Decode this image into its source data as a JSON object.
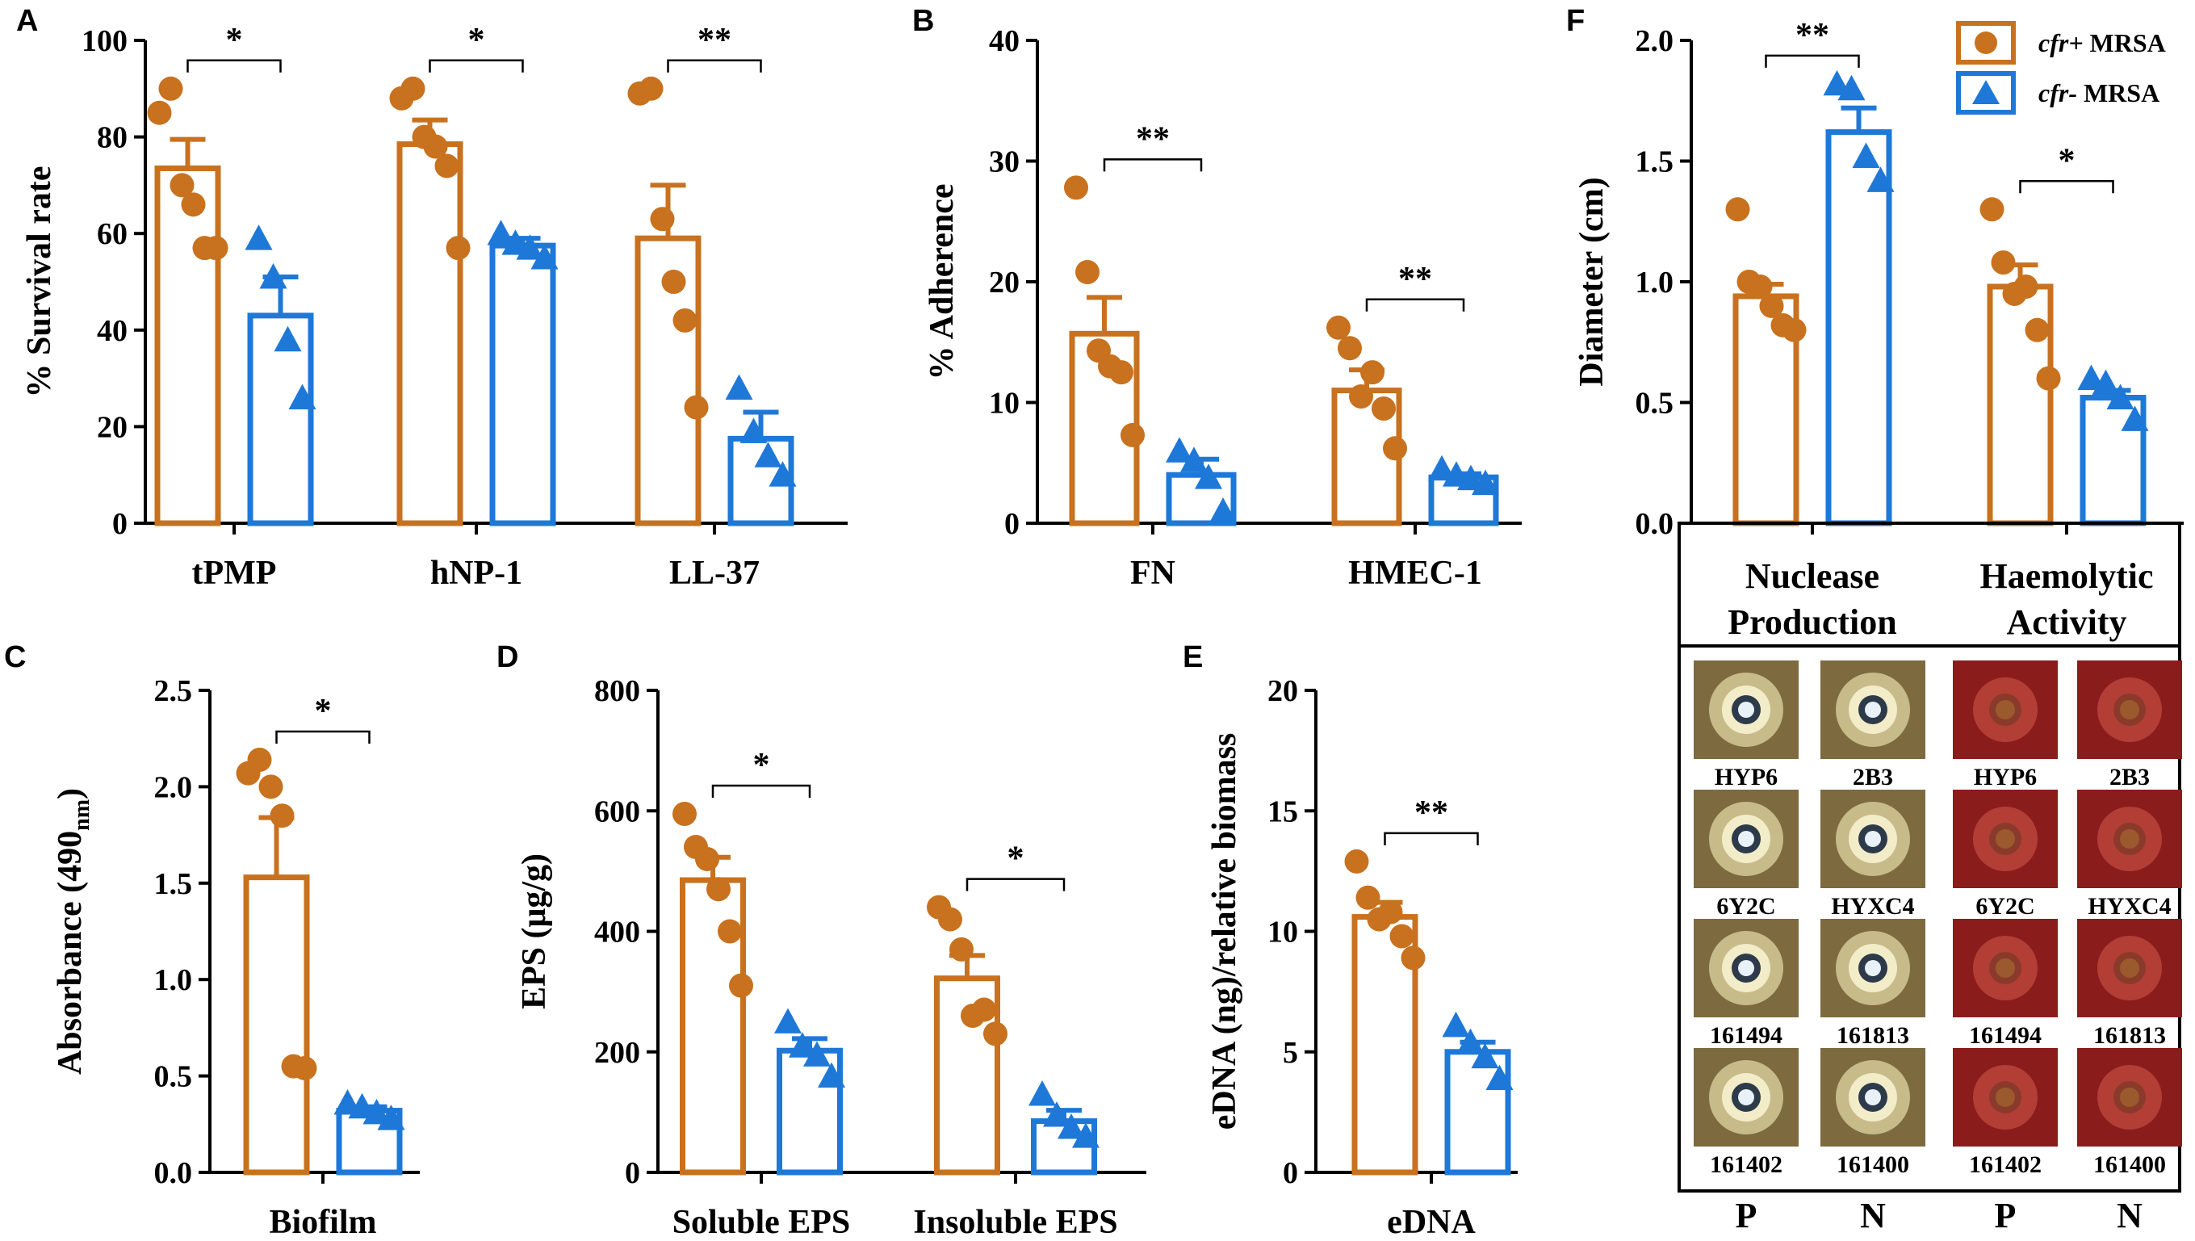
{
  "colors": {
    "pos": "#C8711E",
    "neg": "#1E78D8",
    "axis": "#000000",
    "plateTan": "#7d6a3e",
    "plateRed": "#8a1c1c"
  },
  "legend": {
    "items": [
      {
        "italic": "cfr+",
        "text": " MRSA",
        "marker": "circle",
        "color": "#C8711E"
      },
      {
        "italic": "cfr-",
        "text": "  MRSA",
        "marker": "triangle",
        "color": "#1E78D8"
      }
    ]
  },
  "chart_data": [
    {
      "id": "A",
      "type": "bar",
      "letter": "A",
      "ylabel": "% Survival rate",
      "ylim": [
        0,
        100
      ],
      "yticks": [
        0,
        20,
        40,
        60,
        80,
        100
      ],
      "tick_labels": [
        "0",
        "20",
        "40",
        "60",
        "80",
        "100"
      ],
      "categories": [
        "tPMP",
        "hNP-1",
        "LL-37"
      ],
      "series": [
        {
          "name": "cfr+ MRSA",
          "marker": "circle",
          "values": [
            73.5,
            78.5,
            59
          ],
          "sem": [
            6,
            5,
            11
          ],
          "points": [
            [
              85,
              90,
              70,
              66,
              57,
              57
            ],
            [
              88,
              90,
              80,
              78,
              74,
              57
            ],
            [
              89,
              90,
              63,
              50,
              42,
              24
            ]
          ]
        },
        {
          "name": "cfr- MRSA",
          "marker": "triangle",
          "values": [
            43,
            57.5,
            17.5
          ],
          "sem": [
            8,
            1.5,
            5.5
          ],
          "points": [
            [
              59,
              51,
              38,
              26
            ],
            [
              60,
              58,
              57,
              55
            ],
            [
              28,
              19,
              14,
              10
            ]
          ]
        }
      ],
      "significance": [
        "*",
        "*",
        "**"
      ]
    },
    {
      "id": "B",
      "type": "bar",
      "letter": "B",
      "ylabel": "% Adherence",
      "ylim": [
        0,
        40
      ],
      "yticks": [
        0,
        10,
        20,
        30,
        40
      ],
      "tick_labels": [
        "0",
        "10",
        "20",
        "30",
        "40"
      ],
      "categories": [
        "FN",
        "HMEC-1"
      ],
      "series": [
        {
          "name": "cfr+ MRSA",
          "marker": "circle",
          "values": [
            15.7,
            11
          ],
          "sem": [
            3,
            1.7
          ],
          "points": [
            [
              27.8,
              20.8,
              14.3,
              13,
              12.5,
              7.3
            ],
            [
              16.2,
              14.5,
              10.5,
              12.5,
              9.5,
              6.2
            ]
          ]
        },
        {
          "name": "cfr- MRSA",
          "marker": "triangle",
          "values": [
            4,
            3.8
          ],
          "sem": [
            1.3,
            0.3
          ],
          "points": [
            [
              6,
              5.2,
              3.8,
              1
            ],
            [
              4.5,
              4,
              3.7,
              3.3
            ]
          ]
        }
      ],
      "significance": [
        "**",
        "**"
      ]
    },
    {
      "id": "C",
      "type": "bar",
      "letter": "C",
      "ylabel": "Absorbance (490nm)",
      "ylim": [
        0,
        2.5
      ],
      "yticks": [
        0,
        0.5,
        1.0,
        1.5,
        2.0,
        2.5
      ],
      "tick_labels": [
        "0.0",
        "0.5",
        "1.0",
        "1.5",
        "2.0",
        "2.5"
      ],
      "categories": [
        "Biofilm"
      ],
      "series": [
        {
          "name": "cfr+ MRSA",
          "marker": "circle",
          "values": [
            1.53
          ],
          "sem": [
            0.31
          ],
          "points": [
            [
              2.07,
              2.14,
              2.0,
              1.85,
              0.55,
              0.54
            ]
          ]
        },
        {
          "name": "cfr- MRSA",
          "marker": "triangle",
          "values": [
            0.32
          ],
          "sem": [
            0.02
          ],
          "points": [
            [
              0.36,
              0.34,
              0.31,
              0.28
            ]
          ]
        }
      ],
      "significance": [
        "*"
      ]
    },
    {
      "id": "D",
      "type": "bar",
      "letter": "D",
      "ylabel": "EPS (μg/g)",
      "ylim": [
        0,
        800
      ],
      "yticks": [
        0,
        200,
        400,
        600,
        800
      ],
      "tick_labels": [
        "0",
        "200",
        "400",
        "600",
        "800"
      ],
      "categories": [
        "Soluble EPS",
        "Insoluble EPS"
      ],
      "series": [
        {
          "name": "cfr+ MRSA",
          "marker": "circle",
          "values": [
            485,
            322
          ],
          "sem": [
            38,
            38
          ],
          "points": [
            [
              595,
              540,
              520,
              470,
              400,
              310
            ],
            [
              440,
              420,
              370,
              260,
              270,
              230
            ]
          ]
        },
        {
          "name": "cfr- MRSA",
          "marker": "triangle",
          "values": [
            202,
            85
          ],
          "sem": [
            20,
            18
          ],
          "points": [
            [
              250,
              210,
              195,
              160
            ],
            [
              130,
              95,
              75,
              60
            ]
          ]
        }
      ],
      "significance": [
        "*",
        "*"
      ]
    },
    {
      "id": "E",
      "type": "bar",
      "letter": "E",
      "ylabel": "eDNA (ng)/relative biomass",
      "ylim": [
        0,
        20
      ],
      "yticks": [
        0,
        5,
        10,
        15,
        20
      ],
      "tick_labels": [
        "0",
        "5",
        "10",
        "15",
        "20"
      ],
      "categories": [
        "eDNA"
      ],
      "series": [
        {
          "name": "cfr+ MRSA",
          "marker": "circle",
          "values": [
            10.6
          ],
          "sem": [
            0.6
          ],
          "points": [
            [
              12.9,
              11.4,
              10.5,
              10.8,
              9.8,
              8.9
            ]
          ]
        },
        {
          "name": "cfr- MRSA",
          "marker": "triangle",
          "values": [
            5
          ],
          "sem": [
            0.4
          ],
          "points": [
            [
              6.1,
              5.4,
              4.8,
              3.9
            ]
          ]
        }
      ],
      "significance": [
        "**"
      ]
    },
    {
      "id": "F",
      "type": "bar",
      "letter": "F",
      "ylabel": "Diameter (cm)",
      "ylim": [
        0,
        2.0
      ],
      "yticks": [
        0,
        0.5,
        1.0,
        1.5,
        2.0
      ],
      "tick_labels": [
        "0.0",
        "0.5",
        "1.0",
        "1.5",
        "2.0"
      ],
      "categories": [
        "Nuclease Production",
        "Haemolytic Activity"
      ],
      "series": [
        {
          "name": "cfr+ MRSA",
          "marker": "circle",
          "values": [
            0.94,
            0.98
          ],
          "sem": [
            0.05,
            0.09
          ],
          "points": [
            [
              1.3,
              1.0,
              0.98,
              0.9,
              0.82,
              0.8
            ],
            [
              1.3,
              1.08,
              0.95,
              0.98,
              0.8,
              0.6
            ]
          ]
        },
        {
          "name": "cfr- MRSA",
          "marker": "triangle",
          "values": [
            1.62,
            0.52
          ],
          "sem": [
            0.1,
            0.03
          ],
          "points": [
            [
              1.82,
              1.8,
              1.52,
              1.42
            ],
            [
              0.6,
              0.58,
              0.52,
              0.43
            ]
          ]
        }
      ],
      "significance": [
        "**",
        "*"
      ]
    }
  ],
  "panelF": {
    "headers": [
      [
        "Nuclease",
        "Production"
      ],
      [
        "Haemolytic",
        "Activity"
      ]
    ],
    "plate_rows": [
      [
        "HYP6",
        "2B3",
        "HYP6",
        "2B3"
      ],
      [
        "6Y2C",
        "HYXC4",
        "6Y2C",
        "HYXC4"
      ],
      [
        "161494",
        "161813",
        "161494",
        "161813"
      ],
      [
        "161402",
        "161400",
        "161402",
        "161400"
      ]
    ],
    "bottom_labels": [
      "P",
      "N",
      "P",
      "N"
    ]
  }
}
